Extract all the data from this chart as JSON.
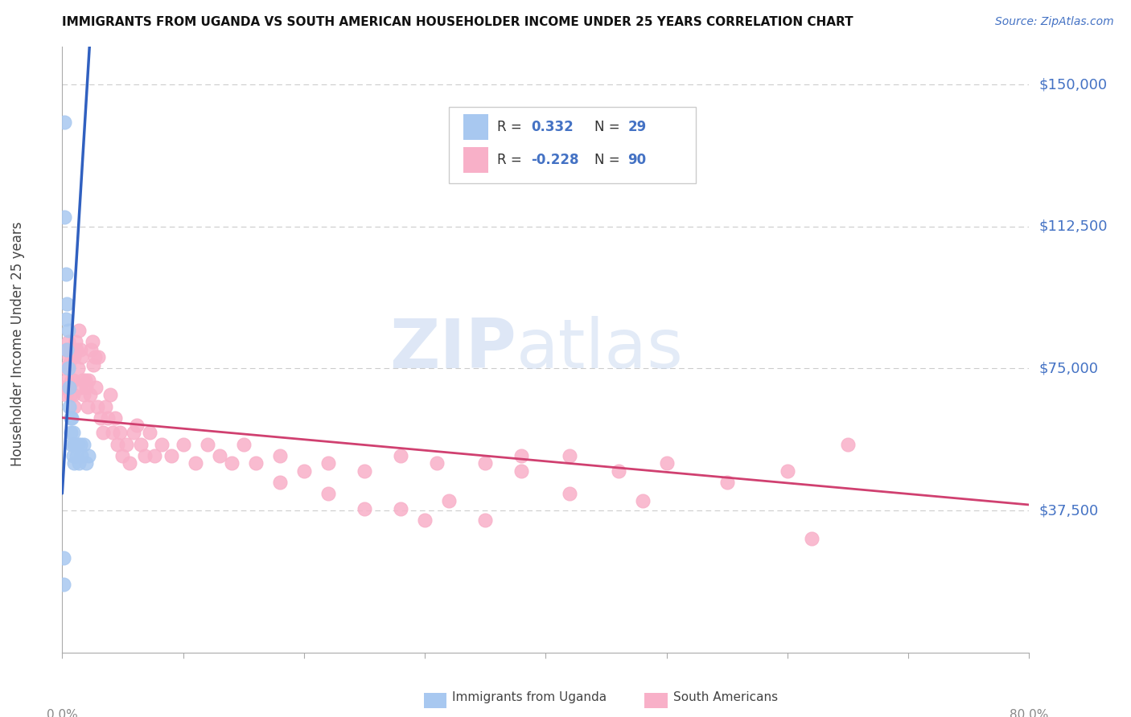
{
  "title": "IMMIGRANTS FROM UGANDA VS SOUTH AMERICAN HOUSEHOLDER INCOME UNDER 25 YEARS CORRELATION CHART",
  "source": "Source: ZipAtlas.com",
  "ylabel": "Householder Income Under 25 years",
  "y_ticks": [
    0,
    37500,
    75000,
    112500,
    150000
  ],
  "y_tick_labels": [
    "",
    "$37,500",
    "$75,000",
    "$112,500",
    "$150,000"
  ],
  "xmin": 0.0,
  "xmax": 0.8,
  "ymin": 0,
  "ymax": 160000,
  "legend_label1": "Immigrants from Uganda",
  "legend_label2": "South Americans",
  "uganda_dot_color": "#a8c8f0",
  "south_american_dot_color": "#f8b0c8",
  "uganda_trend_color": "#3060c0",
  "south_american_trend_color": "#d04070",
  "label_color": "#4472c4",
  "text_dark": "#222222",
  "background_color": "#ffffff",
  "uganda_x": [
    0.001,
    0.001,
    0.002,
    0.002,
    0.003,
    0.003,
    0.004,
    0.004,
    0.005,
    0.005,
    0.006,
    0.006,
    0.007,
    0.007,
    0.008,
    0.008,
    0.009,
    0.009,
    0.01,
    0.01,
    0.011,
    0.012,
    0.013,
    0.014,
    0.015,
    0.016,
    0.018,
    0.02,
    0.022
  ],
  "uganda_y": [
    25000,
    18000,
    140000,
    115000,
    100000,
    88000,
    92000,
    80000,
    85000,
    75000,
    70000,
    65000,
    62000,
    58000,
    62000,
    55000,
    58000,
    52000,
    55000,
    50000,
    55000,
    52000,
    55000,
    50000,
    55000,
    52000,
    55000,
    50000,
    52000
  ],
  "south_american_x": [
    0.002,
    0.003,
    0.003,
    0.004,
    0.004,
    0.005,
    0.005,
    0.006,
    0.006,
    0.007,
    0.007,
    0.008,
    0.008,
    0.009,
    0.009,
    0.01,
    0.01,
    0.011,
    0.012,
    0.013,
    0.014,
    0.015,
    0.015,
    0.016,
    0.017,
    0.018,
    0.019,
    0.02,
    0.021,
    0.022,
    0.023,
    0.024,
    0.025,
    0.026,
    0.027,
    0.028,
    0.029,
    0.03,
    0.032,
    0.034,
    0.036,
    0.038,
    0.04,
    0.042,
    0.044,
    0.046,
    0.048,
    0.05,
    0.053,
    0.056,
    0.059,
    0.062,
    0.065,
    0.068,
    0.072,
    0.076,
    0.082,
    0.09,
    0.1,
    0.11,
    0.12,
    0.13,
    0.14,
    0.15,
    0.16,
    0.18,
    0.2,
    0.22,
    0.25,
    0.28,
    0.31,
    0.35,
    0.38,
    0.42,
    0.46,
    0.5,
    0.55,
    0.6,
    0.65,
    0.38,
    0.25,
    0.18,
    0.32,
    0.28,
    0.42,
    0.35,
    0.22,
    0.48,
    0.3,
    0.62
  ],
  "south_american_y": [
    70000,
    75000,
    68000,
    80000,
    72000,
    82000,
    76000,
    70000,
    78000,
    68000,
    80000,
    78000,
    72000,
    68000,
    72000,
    65000,
    78000,
    82000,
    80000,
    75000,
    85000,
    80000,
    70000,
    78000,
    72000,
    68000,
    72000,
    70000,
    65000,
    72000,
    68000,
    80000,
    82000,
    76000,
    78000,
    70000,
    65000,
    78000,
    62000,
    58000,
    65000,
    62000,
    68000,
    58000,
    62000,
    55000,
    58000,
    52000,
    55000,
    50000,
    58000,
    60000,
    55000,
    52000,
    58000,
    52000,
    55000,
    52000,
    55000,
    50000,
    55000,
    52000,
    50000,
    55000,
    50000,
    52000,
    48000,
    50000,
    48000,
    52000,
    50000,
    50000,
    48000,
    52000,
    48000,
    50000,
    45000,
    48000,
    55000,
    52000,
    38000,
    45000,
    40000,
    38000,
    42000,
    35000,
    42000,
    40000,
    35000,
    30000
  ],
  "sa_trend_x0": 0.0,
  "sa_trend_y0": 62000,
  "sa_trend_x1": 0.8,
  "sa_trend_y1": 39000,
  "ug_trend_x0": 0.0,
  "ug_trend_y0": 42000,
  "ug_trend_x1": 0.022,
  "ug_trend_y1": 157000
}
